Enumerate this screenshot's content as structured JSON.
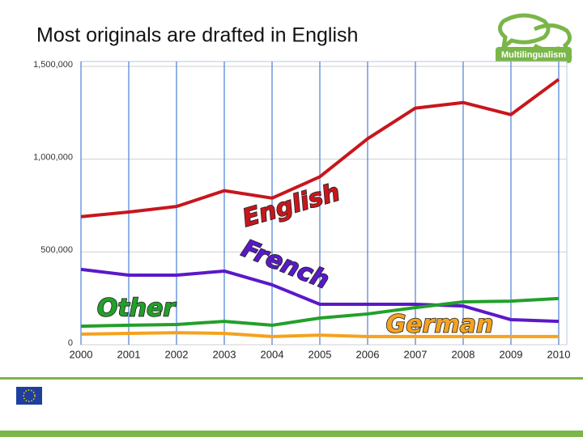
{
  "chart_data": {
    "type": "line",
    "title": "Most originals  are drafted in English",
    "x": [
      2000,
      2001,
      2002,
      2003,
      2004,
      2005,
      2006,
      2007,
      2008,
      2009,
      2010
    ],
    "xlim": [
      2000,
      2010
    ],
    "xticks": [
      2000,
      2001,
      2002,
      2003,
      2004,
      2005,
      2006,
      2007,
      2008,
      2009,
      2010
    ],
    "ylim": [
      0,
      1500000
    ],
    "yticks": [
      0,
      {
        "value": 500000,
        "label": "500,000"
      },
      {
        "value": 1000000,
        "label": "1,000,000"
      },
      {
        "value": 1500000,
        "label": "1,500,000"
      }
    ],
    "grid": true,
    "series": [
      {
        "name": "English",
        "color": "#c8161d",
        "values": [
          690000,
          715000,
          745000,
          830000,
          790000,
          905000,
          1110000,
          1275000,
          1305000,
          1240000,
          1430000
        ]
      },
      {
        "name": "French",
        "color": "#5a19c8",
        "values": [
          406000,
          375000,
          375000,
          397000,
          323000,
          218000,
          218000,
          218000,
          209000,
          135000,
          126000
        ]
      },
      {
        "name": "Other",
        "color": "#22a02a",
        "values": [
          100000,
          105000,
          109000,
          126000,
          105000,
          144000,
          166000,
          200000,
          231000,
          235000,
          249000
        ]
      },
      {
        "name": "German",
        "color": "#f5a21e",
        "values": [
          57000,
          61000,
          65000,
          61000,
          44000,
          52000,
          44000,
          44000,
          44000,
          44000,
          44000
        ]
      }
    ]
  },
  "logo": {
    "text": "Multilingualism"
  }
}
